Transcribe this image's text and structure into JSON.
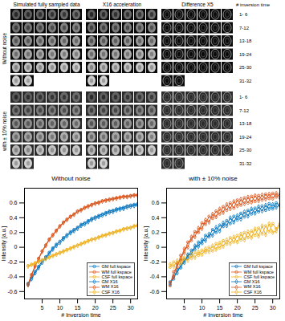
{
  "figure": {
    "columns": [
      "Simulated fully sampled data",
      "X16 acceleration",
      "Difference X5"
    ],
    "row_header": "# inversion time",
    "row_labels": [
      "1- 6",
      "7-12",
      "13-18",
      "19-24",
      "25-30",
      "31-32"
    ],
    "blocks": [
      "Without noise",
      "with ± 10% noise"
    ]
  },
  "chart_data": [
    {
      "type": "line",
      "title": "Without noise",
      "x_label": "# Inversion time",
      "y_label": "Intensity [a.u.]",
      "x": [
        1,
        2,
        3,
        4,
        5,
        6,
        7,
        8,
        9,
        10,
        11,
        12,
        13,
        14,
        15,
        16,
        17,
        18,
        19,
        20,
        21,
        22,
        23,
        24,
        25,
        26,
        27,
        28,
        29,
        30,
        31,
        32
      ],
      "xlim": [
        0,
        32
      ],
      "xticks": [
        5,
        10,
        15,
        20,
        25,
        30
      ],
      "ylim": [
        -0.7,
        0.8
      ],
      "yticks": [
        -0.6,
        -0.4,
        -0.2,
        0,
        0.2,
        0.4,
        0.6
      ],
      "grid": false,
      "legend": "bottom-right",
      "series": [
        {
          "name": "GM full kspace",
          "color": "#0072BD",
          "marker": "circle",
          "line_style": "solid",
          "values": [
            -0.49,
            -0.41,
            -0.33,
            -0.26,
            -0.19,
            -0.13,
            -0.07,
            -0.01,
            0.04,
            0.08,
            0.13,
            0.17,
            0.21,
            0.24,
            0.27,
            0.31,
            0.33,
            0.36,
            0.39,
            0.41,
            0.43,
            0.45,
            0.47,
            0.49,
            0.5,
            0.52,
            0.53,
            0.54,
            0.56,
            0.57,
            0.58,
            0.59
          ]
        },
        {
          "name": "WM full kspace",
          "color": "#D95319",
          "marker": "circle",
          "line_style": "solid",
          "values": [
            -0.5,
            -0.37,
            -0.25,
            -0.15,
            -0.05,
            0.03,
            0.11,
            0.17,
            0.23,
            0.29,
            0.34,
            0.38,
            0.42,
            0.45,
            0.49,
            0.51,
            0.54,
            0.56,
            0.58,
            0.6,
            0.61,
            0.63,
            0.64,
            0.65,
            0.66,
            0.67,
            0.68,
            0.69,
            0.69,
            0.7,
            0.71,
            0.71
          ]
        },
        {
          "name": "CSF full kspace",
          "color": "#EDB120",
          "marker": "circle",
          "line_style": "solid",
          "values": [
            -0.25,
            -0.23,
            -0.21,
            -0.19,
            -0.17,
            -0.15,
            -0.13,
            -0.11,
            -0.09,
            -0.07,
            -0.05,
            -0.03,
            -0.01,
            0.01,
            0.03,
            0.05,
            0.07,
            0.09,
            0.11,
            0.12,
            0.14,
            0.16,
            0.17,
            0.19,
            0.2,
            0.22,
            0.23,
            0.25,
            0.26,
            0.27,
            0.29,
            0.3
          ]
        },
        {
          "name": "GM X16",
          "color": "#0072BD",
          "marker": "diamond",
          "line_style": "solid",
          "values": [
            -0.51,
            -0.43,
            -0.35,
            -0.28,
            -0.21,
            -0.15,
            -0.09,
            -0.03,
            0.02,
            0.06,
            0.11,
            0.15,
            0.19,
            0.22,
            0.25,
            0.29,
            0.31,
            0.34,
            0.37,
            0.39,
            0.41,
            0.43,
            0.45,
            0.47,
            0.48,
            0.5,
            0.51,
            0.52,
            0.54,
            0.55,
            0.56,
            0.57
          ]
        },
        {
          "name": "WM X16",
          "color": "#D95319",
          "marker": "diamond",
          "line_style": "solid",
          "values": [
            -0.51,
            -0.38,
            -0.26,
            -0.16,
            -0.06,
            0.02,
            0.1,
            0.16,
            0.22,
            0.28,
            0.33,
            0.37,
            0.41,
            0.44,
            0.48,
            0.5,
            0.53,
            0.55,
            0.57,
            0.59,
            0.6,
            0.62,
            0.63,
            0.64,
            0.65,
            0.66,
            0.67,
            0.68,
            0.68,
            0.69,
            0.7,
            0.7
          ]
        },
        {
          "name": "CSF X16",
          "color": "#EDB120",
          "marker": "diamond",
          "line_style": "solid",
          "values": [
            -0.26,
            -0.24,
            -0.22,
            -0.2,
            -0.18,
            -0.16,
            -0.14,
            -0.12,
            -0.1,
            -0.08,
            -0.06,
            -0.04,
            -0.02,
            0,
            0.02,
            0.04,
            0.06,
            0.08,
            0.1,
            0.11,
            0.13,
            0.15,
            0.16,
            0.18,
            0.19,
            0.21,
            0.22,
            0.24,
            0.25,
            0.26,
            0.28,
            0.29
          ]
        }
      ]
    },
    {
      "type": "line",
      "title": "with ± 10% noise",
      "x_label": "# Inversion time",
      "y_label": "Intensity [a.u.]",
      "x": [
        1,
        2,
        3,
        4,
        5,
        6,
        7,
        8,
        9,
        10,
        11,
        12,
        13,
        14,
        15,
        16,
        17,
        18,
        19,
        20,
        21,
        22,
        23,
        24,
        25,
        26,
        27,
        28,
        29,
        30,
        31,
        32
      ],
      "xlim": [
        0,
        32
      ],
      "xticks": [
        5,
        10,
        15,
        20,
        25,
        30
      ],
      "ylim": [
        -0.7,
        0.8
      ],
      "yticks": [
        -0.6,
        -0.4,
        -0.2,
        0,
        0.2,
        0.4,
        0.6
      ],
      "grid": false,
      "legend": "bottom-right",
      "series": [
        {
          "name": "GM full kspace",
          "color": "#0072BD",
          "marker": "circle",
          "line_style": "solid",
          "values": [
            -0.47,
            -0.43,
            -0.3,
            -0.28,
            -0.16,
            -0.15,
            -0.04,
            -0.03,
            0.07,
            0.05,
            0.16,
            0.14,
            0.24,
            0.2,
            0.3,
            0.28,
            0.36,
            0.32,
            0.42,
            0.37,
            0.46,
            0.41,
            0.5,
            0.45,
            0.53,
            0.48,
            0.56,
            0.5,
            0.59,
            0.52,
            0.6,
            0.56
          ]
        },
        {
          "name": "WM full kspace",
          "color": "#D95319",
          "marker": "circle",
          "line_style": "solid",
          "values": [
            -0.52,
            -0.33,
            -0.27,
            -0.11,
            -0.08,
            0.07,
            0.09,
            0.21,
            0.2,
            0.33,
            0.31,
            0.42,
            0.39,
            0.49,
            0.45,
            0.55,
            0.5,
            0.6,
            0.53,
            0.64,
            0.57,
            0.67,
            0.6,
            0.69,
            0.62,
            0.7,
            0.64,
            0.72,
            0.66,
            0.73,
            0.68,
            0.72
          ]
        },
        {
          "name": "CSF full kspace",
          "color": "#EDB120",
          "marker": "circle",
          "line_style": "solid",
          "values": [
            -0.27,
            -0.2,
            -0.23,
            -0.16,
            -0.19,
            -0.11,
            -0.15,
            -0.07,
            -0.11,
            -0.04,
            -0.07,
            0,
            -0.05,
            0.05,
            -0.01,
            0.09,
            0.04,
            0.13,
            0.07,
            0.16,
            0.1,
            0.2,
            0.13,
            0.22,
            0.16,
            0.26,
            0.18,
            0.29,
            0.21,
            0.32,
            0.25,
            0.32
          ]
        },
        {
          "name": "GM X16",
          "color": "#0072BD",
          "marker": "diamond",
          "line_style": "solid",
          "values": [
            -0.5,
            -0.4,
            -0.35,
            -0.24,
            -0.21,
            -0.1,
            -0.1,
            0.02,
            0.01,
            0.1,
            0.09,
            0.18,
            0.16,
            0.27,
            0.22,
            0.33,
            0.29,
            0.4,
            0.34,
            0.43,
            0.38,
            0.48,
            0.42,
            0.52,
            0.46,
            0.55,
            0.49,
            0.57,
            0.52,
            0.58,
            0.54,
            0.58
          ]
        },
        {
          "name": "WM X16",
          "color": "#D95319",
          "marker": "diamond",
          "line_style": "solid",
          "values": [
            -0.48,
            -0.4,
            -0.22,
            -0.18,
            -0.02,
            0,
            0.14,
            0.14,
            0.26,
            0.25,
            0.37,
            0.34,
            0.45,
            0.41,
            0.52,
            0.47,
            0.58,
            0.52,
            0.62,
            0.56,
            0.65,
            0.59,
            0.68,
            0.61,
            0.7,
            0.63,
            0.71,
            0.65,
            0.72,
            0.66,
            0.73,
            0.67
          ]
        },
        {
          "name": "CSF X16",
          "color": "#EDB120",
          "marker": "diamond",
          "line_style": "solid",
          "values": [
            -0.23,
            -0.26,
            -0.18,
            -0.22,
            -0.14,
            -0.18,
            -0.1,
            -0.14,
            -0.06,
            -0.1,
            -0.02,
            -0.06,
            0.02,
            -0.03,
            0.06,
            0.01,
            0.1,
            0.05,
            0.14,
            0.07,
            0.18,
            0.1,
            0.21,
            0.13,
            0.25,
            0.15,
            0.29,
            0.17,
            0.32,
            0.2,
            0.22,
            0.3
          ]
        }
      ]
    }
  ]
}
